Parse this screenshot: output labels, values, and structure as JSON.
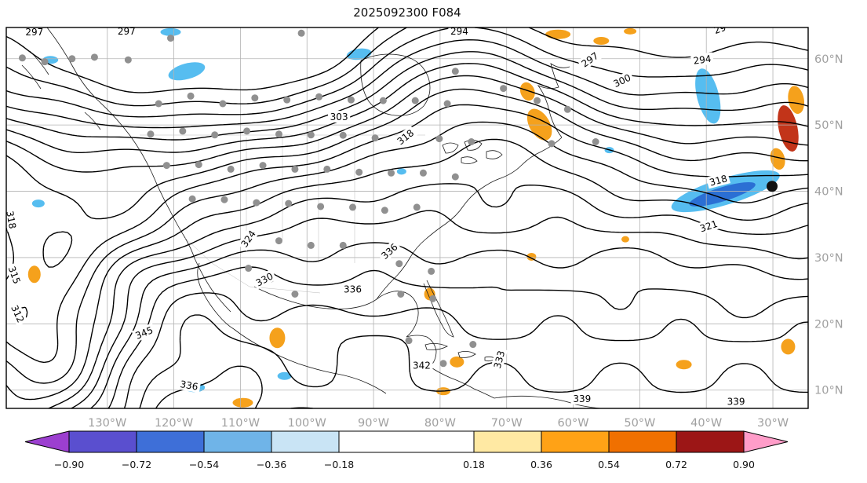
{
  "title": "2025092300 F084",
  "chart_data": {
    "type": "contour-map",
    "title": "2025092300 F084",
    "contour_interval": 3,
    "contour_levels": [
      294,
      297,
      300,
      303,
      306,
      309,
      312,
      315,
      318,
      321,
      324,
      327,
      330,
      333,
      336,
      339,
      342,
      345
    ],
    "contour_labels": [
      {
        "text": "297",
        "x": 0.035,
        "y": 0.012,
        "r": 0
      },
      {
        "text": "297",
        "x": 0.15,
        "y": 0.01,
        "r": 0
      },
      {
        "text": "294",
        "x": 0.565,
        "y": 0.01,
        "r": 0
      },
      {
        "text": "29",
        "x": 0.89,
        "y": 0.004,
        "r": -20
      },
      {
        "text": "294",
        "x": 0.868,
        "y": 0.085,
        "r": -8
      },
      {
        "text": "297",
        "x": 0.728,
        "y": 0.085,
        "r": -35
      },
      {
        "text": "300",
        "x": 0.768,
        "y": 0.14,
        "r": -25
      },
      {
        "text": "303",
        "x": 0.415,
        "y": 0.235,
        "r": 0
      },
      {
        "text": "318",
        "x": 0.498,
        "y": 0.288,
        "r": -38
      },
      {
        "text": "318",
        "x": 0.006,
        "y": 0.505,
        "r": 80
      },
      {
        "text": "315",
        "x": 0.01,
        "y": 0.65,
        "r": 70
      },
      {
        "text": "312",
        "x": 0.014,
        "y": 0.752,
        "r": 65
      },
      {
        "text": "321",
        "x": 0.876,
        "y": 0.522,
        "r": -18
      },
      {
        "text": "318",
        "x": 0.888,
        "y": 0.402,
        "r": -15
      },
      {
        "text": "324",
        "x": 0.302,
        "y": 0.555,
        "r": -55
      },
      {
        "text": "330",
        "x": 0.322,
        "y": 0.662,
        "r": -28
      },
      {
        "text": "336",
        "x": 0.432,
        "y": 0.688,
        "r": 0
      },
      {
        "text": "336",
        "x": 0.478,
        "y": 0.588,
        "r": -42
      },
      {
        "text": "342",
        "x": 0.518,
        "y": 0.888,
        "r": 0
      },
      {
        "text": "345",
        "x": 0.172,
        "y": 0.802,
        "r": -22
      },
      {
        "text": "339",
        "x": 0.91,
        "y": 0.982,
        "r": 0
      },
      {
        "text": "339",
        "x": 0.718,
        "y": 0.975,
        "r": 0
      },
      {
        "text": "333",
        "x": 0.615,
        "y": 0.872,
        "r": -75
      },
      {
        "text": "336",
        "x": 0.228,
        "y": 0.94,
        "r": 10
      }
    ],
    "lat_ticks": {
      "labels": [
        "60°N",
        "50°N",
        "40°N",
        "30°N",
        "20°N",
        "10°N"
      ],
      "positions": [
        0.082,
        0.256,
        0.43,
        0.604,
        0.778,
        0.952
      ]
    },
    "lon_ticks": {
      "labels": [
        "130°W",
        "120°W",
        "110°W",
        "100°W",
        "90°W",
        "80°W",
        "70°W",
        "60°W",
        "50°W",
        "40°W",
        "30°W"
      ],
      "positions": [
        0.126,
        0.209,
        0.292,
        0.375,
        0.458,
        0.541,
        0.624,
        0.707,
        0.79,
        0.873,
        0.956
      ]
    },
    "tick_label_color": "#a0a0a0",
    "grid_color": "#b3b3b3",
    "colorbar": {
      "boundaries": [
        -0.9,
        -0.72,
        -0.54,
        -0.36,
        -0.18,
        0.18,
        0.36,
        0.54,
        0.72,
        0.9
      ],
      "tick_labels": [
        "−0.90",
        "−0.72",
        "−0.54",
        "−0.36",
        "−0.18",
        "0.18",
        "0.36",
        "0.54",
        "0.72",
        "0.90"
      ],
      "segment_colors": [
        "#5a4fcf",
        "#3e6fd8",
        "#6fb4e8",
        "#c9e4f5",
        "#ffffff",
        "#ffe9a3",
        "#ffa216",
        "#f07000",
        "#9c1616"
      ],
      "arrow_left_color": "#9c3fd0",
      "arrow_right_color": "#ff9dc9"
    },
    "shading_colors": {
      "LB": "#56bdf0",
      "DB": "#2b6fd4",
      "OR": "#f5a11c",
      "RD": "#c23419"
    },
    "shading_patches": [
      {
        "x": 0.225,
        "y": 0.115,
        "rx": 24,
        "ry": 10,
        "rot": -15,
        "c": "LB"
      },
      {
        "x": 0.205,
        "y": 0.012,
        "rx": 13,
        "ry": 5,
        "rot": 0,
        "c": "LB"
      },
      {
        "x": 0.055,
        "y": 0.085,
        "rx": 10,
        "ry": 5,
        "rot": 0,
        "c": "LB"
      },
      {
        "x": 0.44,
        "y": 0.07,
        "rx": 16,
        "ry": 7,
        "rot": -8,
        "c": "LB"
      },
      {
        "x": 0.875,
        "y": 0.18,
        "rx": 14,
        "ry": 36,
        "rot": -14,
        "c": "LB"
      },
      {
        "x": 0.897,
        "y": 0.43,
        "rx": 72,
        "ry": 17,
        "rot": -17,
        "c": "LB"
      },
      {
        "x": 0.893,
        "y": 0.438,
        "rx": 44,
        "ry": 9,
        "rot": -17,
        "c": "DB"
      },
      {
        "x": 0.975,
        "y": 0.265,
        "rx": 12,
        "ry": 30,
        "rot": -12,
        "c": "RD"
      },
      {
        "x": 0.985,
        "y": 0.19,
        "rx": 10,
        "ry": 18,
        "rot": -10,
        "c": "OR"
      },
      {
        "x": 0.962,
        "y": 0.345,
        "rx": 9,
        "ry": 14,
        "rot": -15,
        "c": "OR"
      },
      {
        "x": 0.665,
        "y": 0.255,
        "rx": 13,
        "ry": 22,
        "rot": -30,
        "c": "OR"
      },
      {
        "x": 0.65,
        "y": 0.168,
        "rx": 9,
        "ry": 12,
        "rot": -20,
        "c": "OR"
      },
      {
        "x": 0.688,
        "y": 0.018,
        "rx": 16,
        "ry": 6,
        "rot": 0,
        "c": "OR"
      },
      {
        "x": 0.742,
        "y": 0.035,
        "rx": 10,
        "ry": 5,
        "rot": 0,
        "c": "OR"
      },
      {
        "x": 0.778,
        "y": 0.01,
        "rx": 8,
        "ry": 4,
        "rot": 0,
        "c": "OR"
      },
      {
        "x": 0.035,
        "y": 0.648,
        "rx": 8,
        "ry": 11,
        "rot": 0,
        "c": "OR"
      },
      {
        "x": 0.338,
        "y": 0.815,
        "rx": 10,
        "ry": 13,
        "rot": 0,
        "c": "OR"
      },
      {
        "x": 0.528,
        "y": 0.7,
        "rx": 7,
        "ry": 8,
        "rot": 0,
        "c": "OR"
      },
      {
        "x": 0.562,
        "y": 0.878,
        "rx": 9,
        "ry": 7,
        "rot": 0,
        "c": "OR"
      },
      {
        "x": 0.845,
        "y": 0.885,
        "rx": 10,
        "ry": 6,
        "rot": 0,
        "c": "OR"
      },
      {
        "x": 0.975,
        "y": 0.838,
        "rx": 9,
        "ry": 10,
        "rot": 0,
        "c": "OR"
      },
      {
        "x": 0.295,
        "y": 0.985,
        "rx": 13,
        "ry": 6,
        "rot": 0,
        "c": "OR"
      },
      {
        "x": 0.545,
        "y": 0.955,
        "rx": 9,
        "ry": 5,
        "rot": 0,
        "c": "OR"
      },
      {
        "x": 0.655,
        "y": 0.602,
        "rx": 6,
        "ry": 5,
        "rot": 0,
        "c": "OR"
      },
      {
        "x": 0.772,
        "y": 0.556,
        "rx": 5,
        "ry": 4,
        "rot": 0,
        "c": "OR"
      },
      {
        "x": 0.235,
        "y": 0.945,
        "rx": 13,
        "ry": 6,
        "rot": 0,
        "c": "LB"
      },
      {
        "x": 0.347,
        "y": 0.915,
        "rx": 9,
        "ry": 5,
        "rot": 0,
        "c": "LB"
      },
      {
        "x": 0.04,
        "y": 0.462,
        "rx": 8,
        "ry": 5,
        "rot": 0,
        "c": "LB"
      },
      {
        "x": 0.493,
        "y": 0.378,
        "rx": 6,
        "ry": 4,
        "rot": 0,
        "c": "LB"
      },
      {
        "x": 0.752,
        "y": 0.322,
        "rx": 6,
        "ry": 4,
        "rot": 0,
        "c": "LB"
      }
    ],
    "station_dots": [
      [
        0.02,
        0.08
      ],
      [
        0.048,
        0.09
      ],
      [
        0.082,
        0.082
      ],
      [
        0.11,
        0.078
      ],
      [
        0.152,
        0.085
      ],
      [
        0.205,
        0.028
      ],
      [
        0.368,
        0.015
      ],
      [
        0.56,
        0.115
      ],
      [
        0.62,
        0.16
      ],
      [
        0.662,
        0.192
      ],
      [
        0.7,
        0.215
      ],
      [
        0.735,
        0.3
      ],
      [
        0.68,
        0.305
      ],
      [
        0.19,
        0.2
      ],
      [
        0.23,
        0.18
      ],
      [
        0.27,
        0.2
      ],
      [
        0.31,
        0.185
      ],
      [
        0.35,
        0.19
      ],
      [
        0.39,
        0.182
      ],
      [
        0.43,
        0.19
      ],
      [
        0.47,
        0.192
      ],
      [
        0.51,
        0.192
      ],
      [
        0.55,
        0.2
      ],
      [
        0.18,
        0.28
      ],
      [
        0.22,
        0.272
      ],
      [
        0.26,
        0.282
      ],
      [
        0.3,
        0.272
      ],
      [
        0.34,
        0.28
      ],
      [
        0.38,
        0.282
      ],
      [
        0.42,
        0.283
      ],
      [
        0.46,
        0.29
      ],
      [
        0.5,
        0.282
      ],
      [
        0.54,
        0.292
      ],
      [
        0.58,
        0.3
      ],
      [
        0.2,
        0.362
      ],
      [
        0.24,
        0.36
      ],
      [
        0.28,
        0.372
      ],
      [
        0.32,
        0.362
      ],
      [
        0.36,
        0.372
      ],
      [
        0.4,
        0.372
      ],
      [
        0.44,
        0.38
      ],
      [
        0.48,
        0.382
      ],
      [
        0.52,
        0.382
      ],
      [
        0.56,
        0.392
      ],
      [
        0.232,
        0.45
      ],
      [
        0.272,
        0.452
      ],
      [
        0.312,
        0.46
      ],
      [
        0.352,
        0.462
      ],
      [
        0.392,
        0.47
      ],
      [
        0.432,
        0.472
      ],
      [
        0.472,
        0.48
      ],
      [
        0.512,
        0.472
      ],
      [
        0.3,
        0.552
      ],
      [
        0.34,
        0.56
      ],
      [
        0.38,
        0.572
      ],
      [
        0.42,
        0.572
      ],
      [
        0.49,
        0.62
      ],
      [
        0.53,
        0.64
      ],
      [
        0.33,
        0.66
      ],
      [
        0.36,
        0.7
      ],
      [
        0.302,
        0.632
      ],
      [
        0.492,
        0.7
      ],
      [
        0.532,
        0.712
      ],
      [
        0.502,
        0.822
      ],
      [
        0.582,
        0.832
      ],
      [
        0.545,
        0.882
      ]
    ],
    "special_dot": [
      0.955,
      0.417
    ]
  }
}
